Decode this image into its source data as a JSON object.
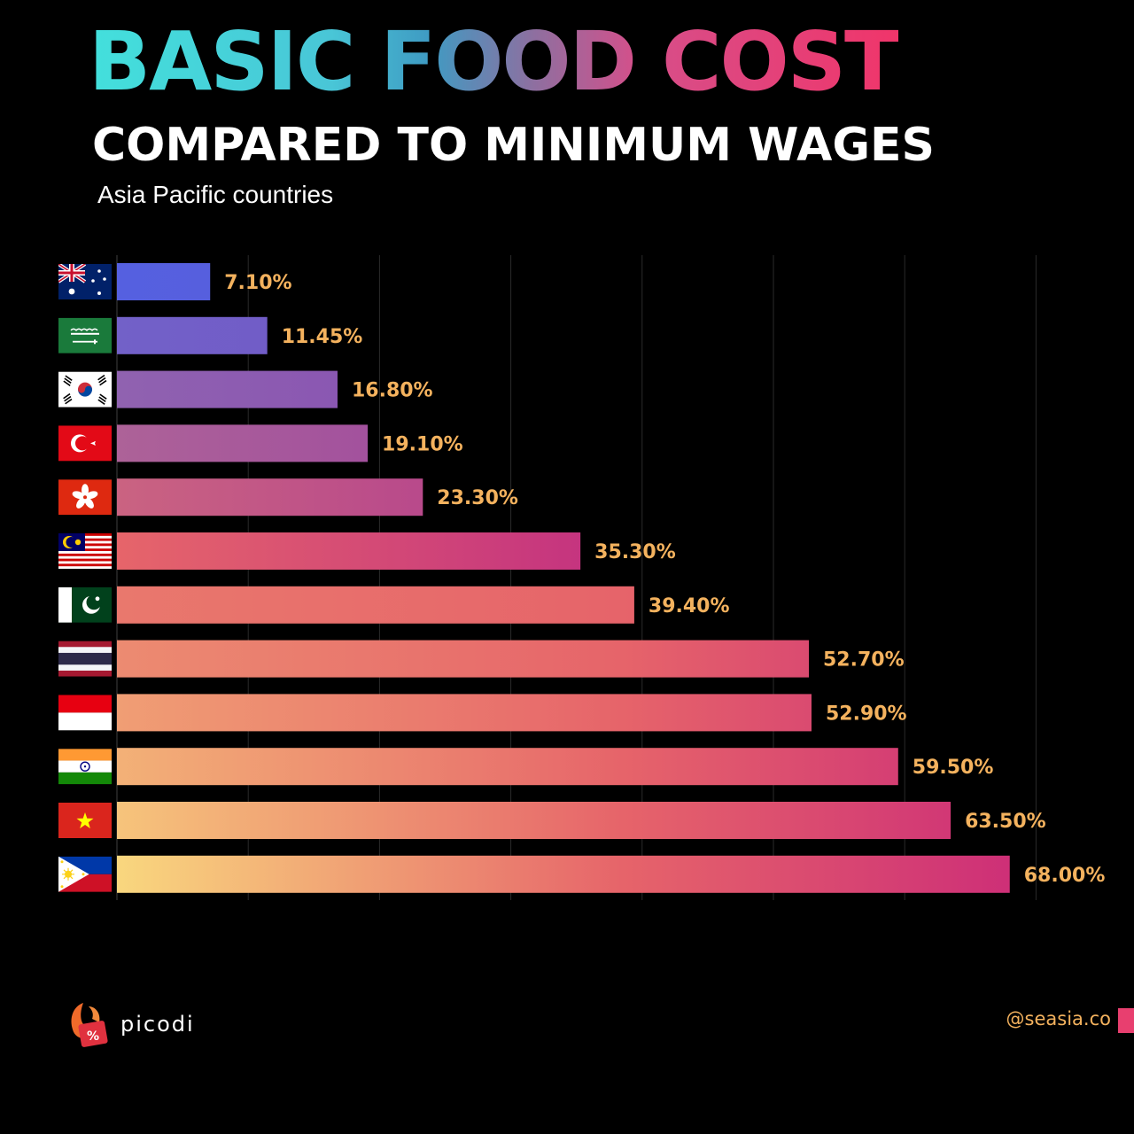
{
  "header": {
    "title": "BASIC FOOD COST",
    "subtitle": "COMPARED TO MINIMUM WAGES",
    "region": "Asia Pacific countries"
  },
  "chart_data": {
    "type": "bar",
    "orientation": "horizontal",
    "title": "BASIC FOOD COST COMPARED TO MINIMUM WAGES",
    "subtitle": "Asia Pacific countries",
    "categories": [
      "Australia",
      "Saudi Arabia",
      "South Korea",
      "Turkey",
      "Hong Kong",
      "Malaysia",
      "Pakistan",
      "Thailand",
      "Indonesia",
      "India",
      "Vietnam",
      "Philippines"
    ],
    "category_icons": [
      "flag-australia",
      "flag-saudi-arabia",
      "flag-south-korea",
      "flag-turkey",
      "flag-hong-kong",
      "flag-malaysia",
      "flag-pakistan",
      "flag-thailand",
      "flag-indonesia",
      "flag-india",
      "flag-vietnam",
      "flag-philippines"
    ],
    "values": [
      7.1,
      11.45,
      16.8,
      19.1,
      23.3,
      35.3,
      39.4,
      52.7,
      52.9,
      59.5,
      63.5,
      68.0
    ],
    "value_labels": [
      "7.10%",
      "11.45%",
      "16.80%",
      "19.10%",
      "23.30%",
      "35.30%",
      "39.40%",
      "52.70%",
      "52.90%",
      "59.50%",
      "63.50%",
      "68.00%"
    ],
    "unit": "%",
    "xlim": [
      0,
      70
    ],
    "grid_step": 10,
    "grid": true,
    "legend": "none"
  },
  "footer": {
    "brand": "picodi",
    "handle": "@seasia.co"
  },
  "colors": {
    "background": "#000000",
    "value_label": "#f4b25e",
    "grid": "#2a2a2a",
    "bar_light": "#f9d77e",
    "bar_mid": "#e6646a",
    "bar_dark": "#cc2c78",
    "bar_top_left": "#5560e0",
    "bar_top_right": "#5a5ad6",
    "handle_bar": "#e83f6f"
  }
}
